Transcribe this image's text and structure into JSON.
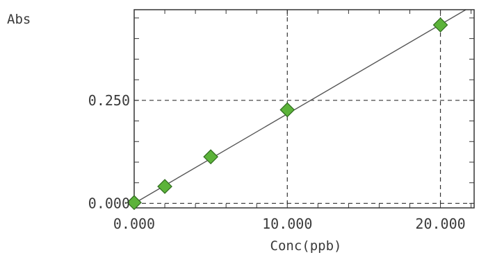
{
  "chart_data": {
    "type": "scatter",
    "title": "",
    "xlabel": "Conc(ppb)",
    "ylabel": "Abs",
    "xlim": [
      0,
      22.2
    ],
    "ylim": [
      -0.011,
      0.47
    ],
    "x_ticks": [
      {
        "value": 0,
        "label": "0.000"
      },
      {
        "value": 10,
        "label": "10.000"
      },
      {
        "value": 20,
        "label": "20.000"
      }
    ],
    "y_ticks": [
      {
        "value": 0,
        "label": "0.000"
      },
      {
        "value": 0.25,
        "label": "0.250"
      }
    ],
    "x_minor_step": 2,
    "y_minor_step": 0.05,
    "grid": "dashed at labeled ticks",
    "series": [
      {
        "marker": "diamond",
        "color": "#5cb33a",
        "x": [
          0,
          2,
          5,
          10,
          20
        ],
        "y": [
          0.002,
          0.041,
          0.113,
          0.227,
          0.433
        ]
      }
    ],
    "fit_line": {
      "slope": 0.0217,
      "intercept": 0.0,
      "color": "#555555"
    }
  }
}
